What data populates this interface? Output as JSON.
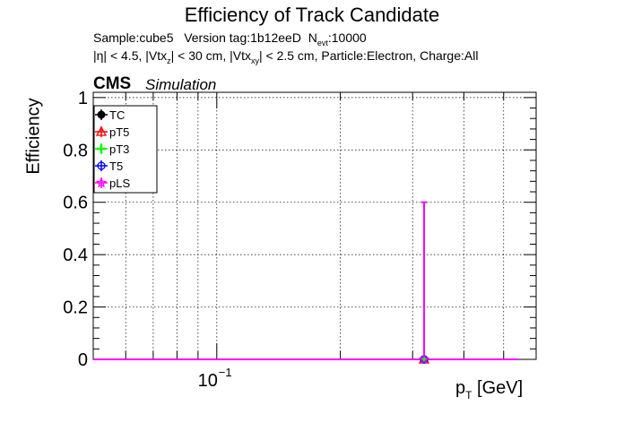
{
  "chart_data": {
    "type": "scatter",
    "title": "Efficiency of Track Candidate",
    "subtitle_line1": {
      "sample": "Sample:cube5",
      "version": "Version tag:1b12eeD",
      "nevt_prefix": "N",
      "nevt_sub": "evt",
      "nevt_value": ":10000"
    },
    "subtitle_line2": {
      "eta": "|η| < 4.5, |Vtx",
      "z_sub": "z",
      "vtxz": "| < 30 cm, |Vtx",
      "xy_sub": "xy",
      "rest": "| < 2.5 cm, Particle:Electron, Charge:All"
    },
    "cms_label": "CMS",
    "sim_label": "Simulation",
    "ylabel": "Efficiency",
    "xlabel_main": "p",
    "xlabel_sub": "T",
    "xlabel_unit": " [GeV]",
    "x_scale": "log",
    "xlim": [
      0.05,
      0.6
    ],
    "ylim": [
      0,
      1.02
    ],
    "y_ticks": [
      {
        "v": 0,
        "label": "0"
      },
      {
        "v": 0.2,
        "label": "0.2"
      },
      {
        "v": 0.4,
        "label": "0.4"
      },
      {
        "v": 0.6,
        "label": "0.6"
      },
      {
        "v": 0.8,
        "label": "0.8"
      },
      {
        "v": 1,
        "label": "1"
      }
    ],
    "x_tick_label": {
      "v": 0.1,
      "base": "10",
      "exp": "−1"
    },
    "grid": true,
    "legend_position": "top-left",
    "series": [
      {
        "name": "TC",
        "color": "#000000",
        "marker": "filled-circle",
        "x": [
          0.32
        ],
        "y": [
          0
        ],
        "yerr_high": [
          0
        ]
      },
      {
        "name": "pT5",
        "color": "#ff0000",
        "marker": "open-triangle",
        "x": [
          0.32
        ],
        "y": [
          0
        ],
        "yerr_high": [
          0
        ]
      },
      {
        "name": "pT3",
        "color": "#00ff00",
        "marker": "cross",
        "x": [
          0.32
        ],
        "y": [
          0
        ],
        "yerr_high": [
          0
        ]
      },
      {
        "name": "T5",
        "color": "#0000ff",
        "marker": "open-circle",
        "x": [
          0.32
        ],
        "y": [
          0
        ],
        "yerr_high": [
          0
        ]
      },
      {
        "name": "pLS",
        "color": "#ff00ff",
        "marker": "open-star",
        "x": [
          0.32
        ],
        "y": [
          0
        ],
        "yerr_high": [
          0.6
        ]
      }
    ]
  }
}
